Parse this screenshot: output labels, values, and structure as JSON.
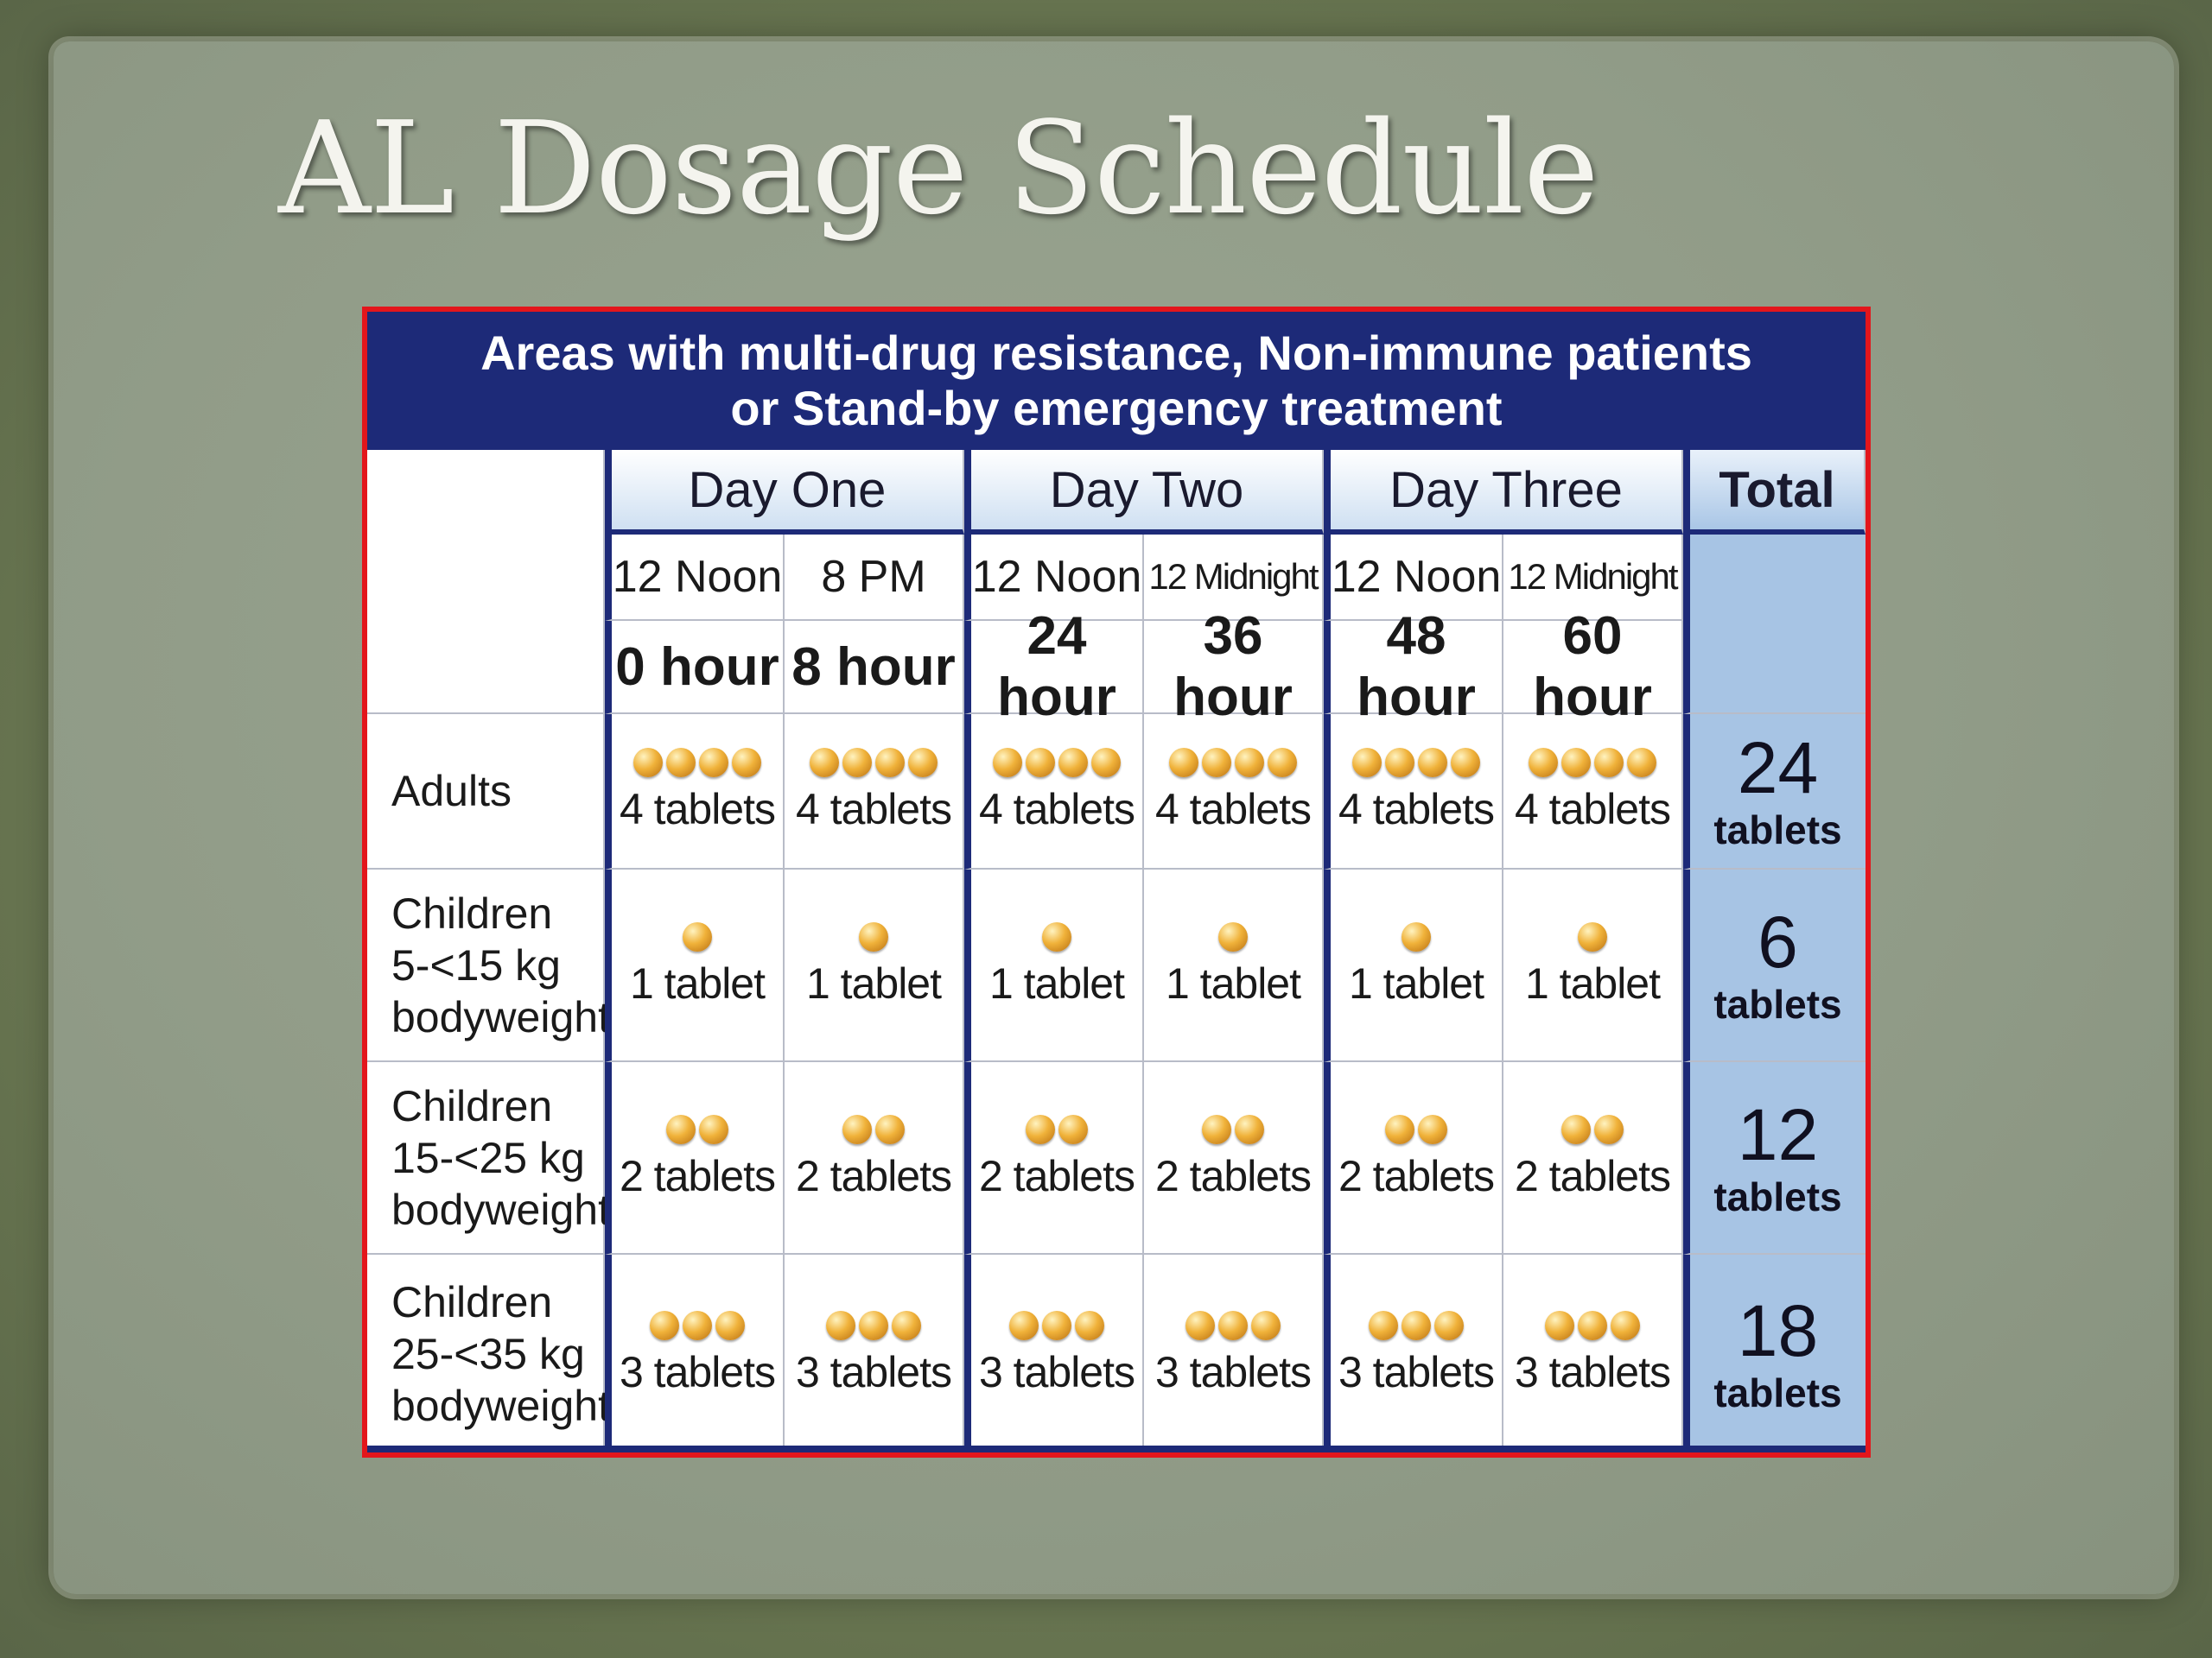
{
  "title": "AL Dosage Schedule",
  "banner": {
    "line1": "Areas with multi-drug resistance, Non-immune patients",
    "line2": "or Stand-by emergency treatment"
  },
  "days": [
    "Day One",
    "Day Two",
    "Day Three"
  ],
  "total_header": "Total",
  "times": [
    "12 Noon",
    "8 PM",
    "12 Noon",
    "12 Midnight",
    "12 Noon",
    "12 Midnight"
  ],
  "hours": [
    "0 hour",
    "8 hour",
    "24 hour",
    "36 hour",
    "48 hour",
    "60 hour"
  ],
  "rows": [
    {
      "label": [
        "Adults"
      ],
      "pill_count": 4,
      "dose": "4 tablets",
      "total_num": "24",
      "total_unit": "tablets"
    },
    {
      "label": [
        "Children",
        "5-<15 kg",
        "bodyweight"
      ],
      "pill_count": 1,
      "dose": "1 tablet",
      "total_num": "6",
      "total_unit": "tablets"
    },
    {
      "label": [
        "Children",
        "15-<25 kg",
        "bodyweight"
      ],
      "pill_count": 2,
      "dose": "2 tablets",
      "total_num": "12",
      "total_unit": "tablets"
    },
    {
      "label": [
        "Children",
        "25-<35 kg",
        "bodyweight"
      ],
      "pill_count": 3,
      "dose": "3 tablets",
      "total_num": "18",
      "total_unit": "tablets"
    }
  ],
  "colors": {
    "banner": "#1d2a78",
    "frame_border": "#e3161c",
    "total_column": "#a7c4e4",
    "pill": "#f0b23a"
  },
  "icons": {
    "tablet": "tablet-icon"
  }
}
